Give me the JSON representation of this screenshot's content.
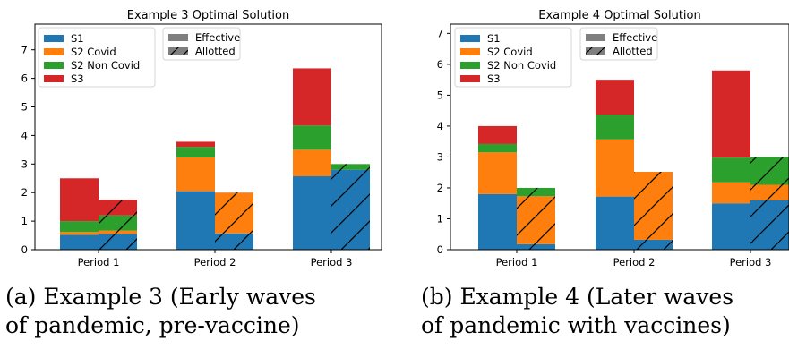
{
  "colors": {
    "S1": "#1f77b4",
    "S2 Covid": "#ff7f0e",
    "S2 Non Covid": "#2ca02c",
    "S3": "#d62728",
    "legend_patch": "#7f7f7f"
  },
  "captions": {
    "a_line1": "(a) Example 3 (Early waves",
    "a_line2": "of pandemic, pre-vaccine)",
    "b_line1": "(b) Example 4 (Later waves",
    "b_line2": "of pandemic with vaccines)"
  },
  "chart_data": [
    {
      "type": "bar",
      "stacked": true,
      "title": "Example 3 Optimal Solution",
      "categories": [
        "Period 1",
        "Period 2",
        "Period 3"
      ],
      "ylim": [
        0,
        7.9
      ],
      "yticks": [
        0,
        1,
        2,
        3,
        4,
        5,
        6,
        7
      ],
      "xlabel": "",
      "ylabel": "",
      "legend_series": [
        "S1",
        "S2 Covid",
        "S2 Non Covid",
        "S3"
      ],
      "legend_styles": [
        "Effective",
        "Allotted"
      ],
      "legend_placement": "top-left",
      "effective": [
        {
          "name": "S1",
          "values": [
            0.52,
            2.05,
            2.57
          ]
        },
        {
          "name": "S2 Covid",
          "values": [
            0.1,
            1.18,
            0.93
          ]
        },
        {
          "name": "S2 Non Covid",
          "values": [
            0.38,
            0.37,
            0.85
          ]
        },
        {
          "name": "S3",
          "values": [
            1.5,
            0.18,
            2.0
          ]
        }
      ],
      "allotted": [
        {
          "name": "S1",
          "values": [
            0.55,
            0.57,
            2.8
          ]
        },
        {
          "name": "S2 Covid",
          "values": [
            0.12,
            1.43,
            0.0
          ]
        },
        {
          "name": "S2 Non Covid",
          "values": [
            0.53,
            0.0,
            0.2
          ]
        },
        {
          "name": "S3",
          "values": [
            0.55,
            0.0,
            0.0
          ]
        }
      ]
    },
    {
      "type": "bar",
      "stacked": true,
      "title": "Example 4 Optimal Solution",
      "categories": [
        "Period 1",
        "Period 2",
        "Period 3"
      ],
      "ylim": [
        0,
        7.3
      ],
      "yticks": [
        0,
        1,
        2,
        3,
        4,
        5,
        6,
        7
      ],
      "xlabel": "",
      "ylabel": "",
      "legend_series": [
        "S1",
        "S2 Covid",
        "S2 Non Covid",
        "S3"
      ],
      "legend_styles": [
        "Effective",
        "Allotted"
      ],
      "legend_placement": "top-left",
      "effective": [
        {
          "name": "S1",
          "values": [
            1.8,
            1.72,
            1.5
          ]
        },
        {
          "name": "S2 Covid",
          "values": [
            1.35,
            1.85,
            0.68
          ]
        },
        {
          "name": "S2 Non Covid",
          "values": [
            0.27,
            0.8,
            0.8
          ]
        },
        {
          "name": "S3",
          "values": [
            0.58,
            1.13,
            2.82
          ]
        }
      ],
      "allotted": [
        {
          "name": "S1",
          "values": [
            0.18,
            0.32,
            1.6
          ]
        },
        {
          "name": "S2 Covid",
          "values": [
            1.55,
            2.2,
            0.5
          ]
        },
        {
          "name": "S2 Non Covid",
          "values": [
            0.27,
            0.0,
            0.9
          ]
        },
        {
          "name": "S3",
          "values": [
            0.0,
            0.0,
            0.0
          ]
        }
      ]
    }
  ]
}
